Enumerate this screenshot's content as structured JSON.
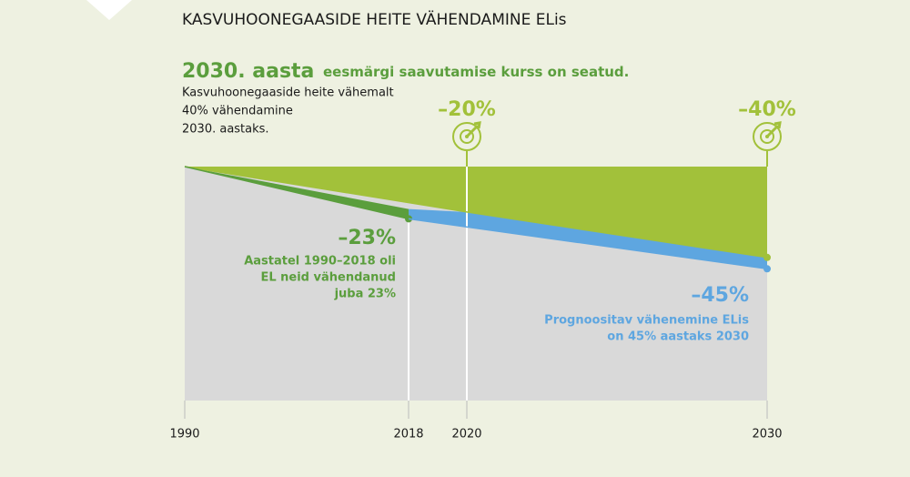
{
  "chart_data": {
    "type": "area",
    "title": "KASVUHOONEGAASIDE HEITE VÄHENDAMINE ELis",
    "headline": {
      "emphasis": "2030. aasta",
      "text": "eesmärgi saavutamise kurss on seatud."
    },
    "subtitle": [
      "Kasvuhoonegaaside heite vähemalt",
      "40% vähendamine",
      "2030. aastaks."
    ],
    "xticks": [
      1990,
      2018,
      2020,
      2030
    ],
    "ylim": [
      0,
      -103
    ],
    "series": [
      {
        "color": "#a2c13a",
        "x": [
          1990,
          2020,
          2030
        ],
        "values": [
          0,
          -20,
          -40
        ],
        "value_labels": [
          null,
          "–20%",
          "–40%"
        ]
      },
      {
        "color": "#5b9e3d",
        "x": [
          1990,
          2018
        ],
        "values": [
          0,
          -23
        ],
        "value_labels": [
          null,
          "–23%"
        ],
        "annotation": [
          "Aastatel 1990–2018 oli",
          "EL neid vähendanud",
          "juba 23%"
        ]
      },
      {
        "color": "#5ea6e0",
        "x": [
          2018,
          2030
        ],
        "values": [
          -23,
          -45
        ],
        "value_labels": [
          null,
          "–45%"
        ],
        "annotation": [
          "Prognoositav vähenemine ELis",
          "on 45% aastaks 2030"
        ]
      }
    ],
    "background_color": "#d9d9d9"
  }
}
